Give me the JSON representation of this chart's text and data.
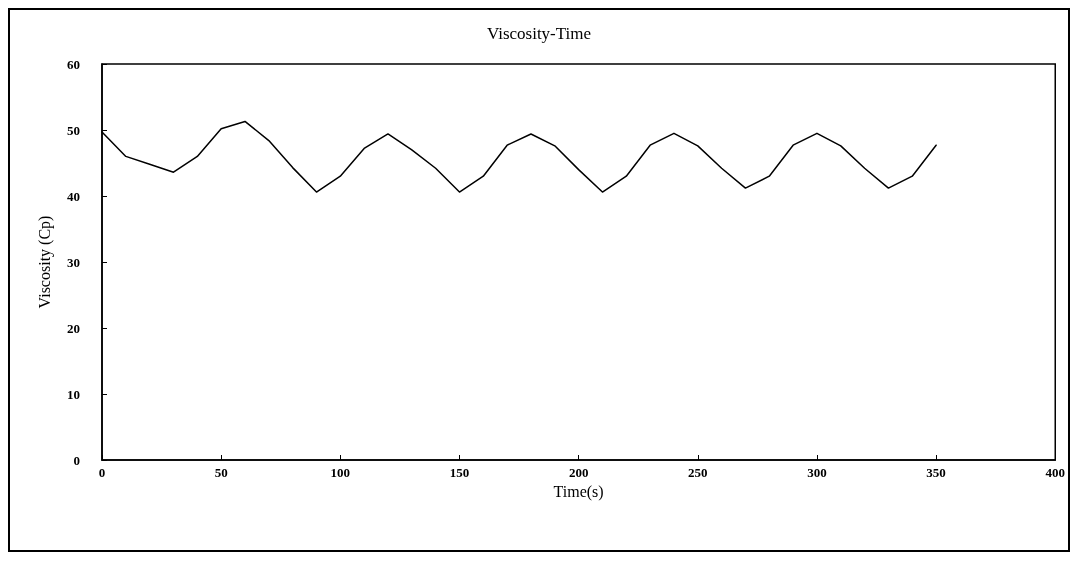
{
  "chart_data": {
    "type": "line",
    "title": "Viscosity-Time",
    "xlabel": "Time(s)",
    "ylabel": "Viscosity (Cp)",
    "x": [
      0,
      10,
      20,
      30,
      40,
      50,
      60,
      70,
      80,
      90,
      100,
      110,
      120,
      130,
      140,
      150,
      160,
      170,
      180,
      190,
      200,
      210,
      220,
      230,
      240,
      250,
      260,
      270,
      280,
      290,
      300,
      310,
      320,
      330,
      340,
      350
    ],
    "series": [
      {
        "color": "#000000",
        "values": [
          49.7,
          46,
          44.8,
          43.6,
          46,
          50.2,
          51.3,
          48.4,
          44.3,
          40.6,
          43,
          47.2,
          49.4,
          47,
          44.2,
          40.6,
          43,
          47.7,
          49.4,
          47.6,
          44,
          40.6,
          43,
          47.7,
          49.5,
          47.6,
          44.2,
          41.2,
          43,
          47.7,
          49.5,
          47.6,
          44.2,
          41.2,
          43,
          47.7
        ]
      }
    ],
    "xlim": [
      0,
      400
    ],
    "xticks": [
      0,
      50,
      100,
      150,
      200,
      250,
      300,
      350,
      400
    ],
    "ylim": [
      0,
      60
    ],
    "yticks": [
      0,
      10,
      20,
      30,
      40,
      50,
      60
    ],
    "marker": "none",
    "line_style": "solid"
  }
}
